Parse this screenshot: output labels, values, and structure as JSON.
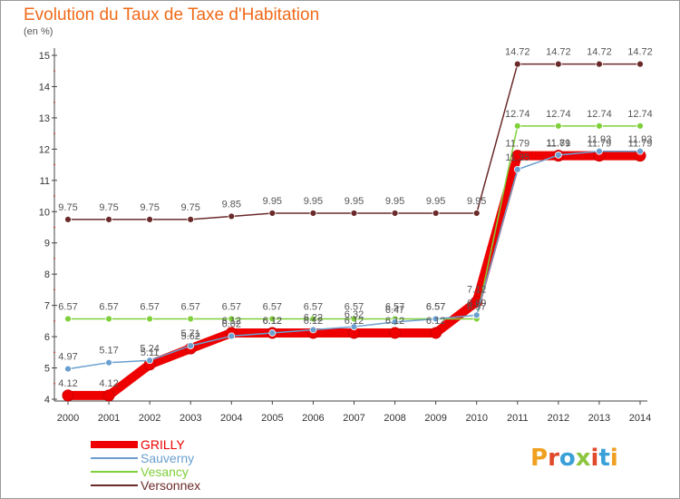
{
  "chart_data": {
    "type": "line",
    "title": "Evolution du Taux de Taxe d'Habitation",
    "unit_label": "(en %)",
    "x": [
      2000,
      2001,
      2002,
      2003,
      2004,
      2005,
      2006,
      2007,
      2008,
      2009,
      2010,
      2011,
      2012,
      2013,
      2014
    ],
    "ylim": [
      4,
      15
    ],
    "yticks": [
      4,
      5,
      6,
      7,
      8,
      9,
      10,
      11,
      12,
      13,
      14,
      15
    ],
    "grid": false,
    "legend_position": "bottom-left",
    "series": [
      {
        "name": "GRILLY",
        "color": "#ee0000",
        "values": [
          4.12,
          4.12,
          5.11,
          5.62,
          6.12,
          6.12,
          6.12,
          6.12,
          6.12,
          6.12,
          7.12,
          11.79,
          11.79,
          11.79,
          11.79
        ],
        "labels": [
          "4.12",
          "4.12",
          "5.11",
          "5.62",
          "6.12",
          "6.12",
          "6.12",
          "6.12",
          "6.12",
          "6.12",
          "7.12",
          "11.79",
          "11.79",
          "11.79",
          "11.79"
        ]
      },
      {
        "name": "Sauverny",
        "color": "#6a9fcf",
        "values": [
          4.97,
          5.17,
          5.24,
          5.71,
          6.02,
          6.12,
          6.22,
          6.32,
          6.47,
          6.57,
          6.69,
          11.35,
          11.81,
          11.93,
          11.93
        ],
        "labels": [
          "4.97",
          "5.17",
          "5.24",
          "5.71",
          "6.02",
          "6.12",
          "6.22",
          "6.32",
          "6.47",
          "6.57",
          "6.69",
          "11.35",
          "11.81",
          "11.93",
          "11.93"
        ]
      },
      {
        "name": "Vesancy",
        "color": "#7fd03a",
        "values": [
          6.57,
          6.57,
          6.57,
          6.57,
          6.57,
          6.57,
          6.57,
          6.57,
          6.57,
          6.57,
          6.57,
          12.74,
          12.74,
          12.74,
          12.74
        ],
        "labels": [
          "6.57",
          "6.57",
          "6.57",
          "6.57",
          "6.57",
          "6.57",
          "6.57",
          "6.57",
          "6.57",
          "6.57",
          "6.57",
          "12.74",
          "12.74",
          "12.74",
          "12.74"
        ]
      },
      {
        "name": "Versonnex",
        "color": "#6b2a2a",
        "values": [
          9.75,
          9.75,
          9.75,
          9.75,
          9.85,
          9.95,
          9.95,
          9.95,
          9.95,
          9.95,
          9.95,
          14.72,
          14.72,
          14.72,
          14.72
        ],
        "labels": [
          "9.75",
          "9.75",
          "9.75",
          "9.75",
          "9.85",
          "9.95",
          "9.95",
          "9.95",
          "9.95",
          "9.95",
          "9.95",
          "14.72",
          "14.72",
          "14.72",
          "14.72"
        ]
      }
    ]
  },
  "legend": [
    {
      "label": "GRILLY",
      "color": "#ee0000"
    },
    {
      "label": "Sauverny",
      "color": "#6a9fcf"
    },
    {
      "label": "Vesancy",
      "color": "#7fd03a"
    },
    {
      "label": "Versonnex",
      "color": "#6b2a2a"
    }
  ],
  "logo": {
    "text": "Proxiti",
    "letter_colors": [
      "#f0a020",
      "#e04a2a",
      "#3aa0d8",
      "#8cc63f",
      "#e04a2a",
      "#3aa0d8",
      "#f0a020"
    ]
  }
}
